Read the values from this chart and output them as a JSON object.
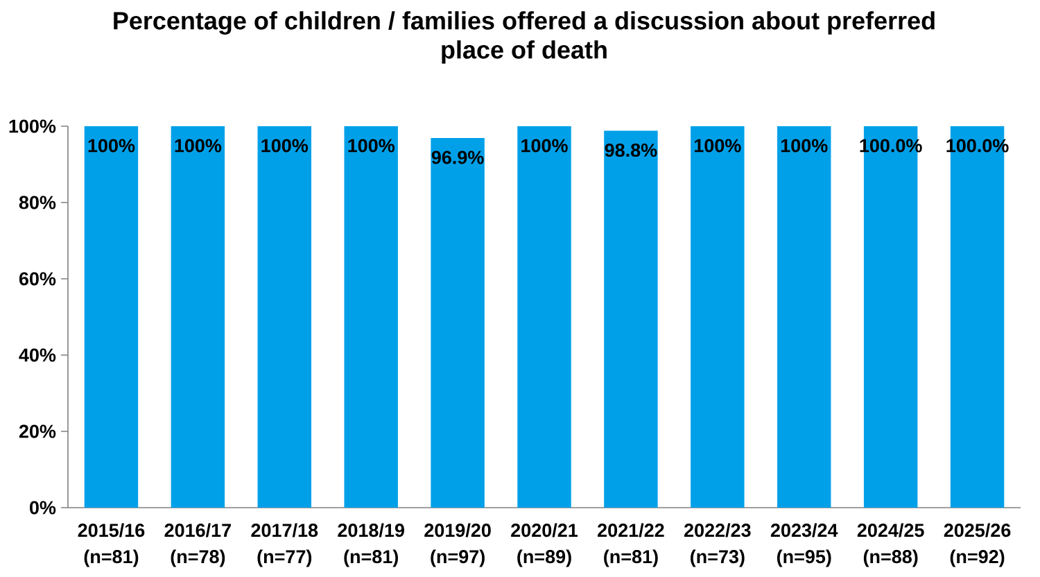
{
  "chart_data": {
    "type": "bar",
    "title": "Percentage of children / families offered a discussion about preferred place of death",
    "categories": [
      "2015/16 (n=81)",
      "2016/17 (n=78)",
      "2017/18 (n=77)",
      "2018/19 (n=81)",
      "2019/20 (n=97)",
      "2020/21 (n=89)",
      "2021/22 (n=81)",
      "2022/23 (n=73)",
      "2023/24 (n=95)",
      "2024/25 (n=88)",
      "2025/26 (n=92)"
    ],
    "values": [
      100,
      100,
      100,
      100,
      96.9,
      100,
      98.8,
      100,
      100,
      100.0,
      100.0
    ],
    "value_labels": [
      "100%",
      "100%",
      "100%",
      "100%",
      "96.9%",
      "100%",
      "98.8%",
      "100%",
      "100%",
      "100.0%",
      "100.0%"
    ],
    "color": "#00a0e9",
    "ylim": [
      0,
      100
    ],
    "yticks": [
      {
        "value": 0,
        "label": "0%"
      },
      {
        "value": 20,
        "label": "20%"
      },
      {
        "value": 40,
        "label": "40%"
      },
      {
        "value": 60,
        "label": "60%"
      },
      {
        "value": 80,
        "label": "80%"
      },
      {
        "value": 100,
        "label": "100%"
      }
    ]
  }
}
